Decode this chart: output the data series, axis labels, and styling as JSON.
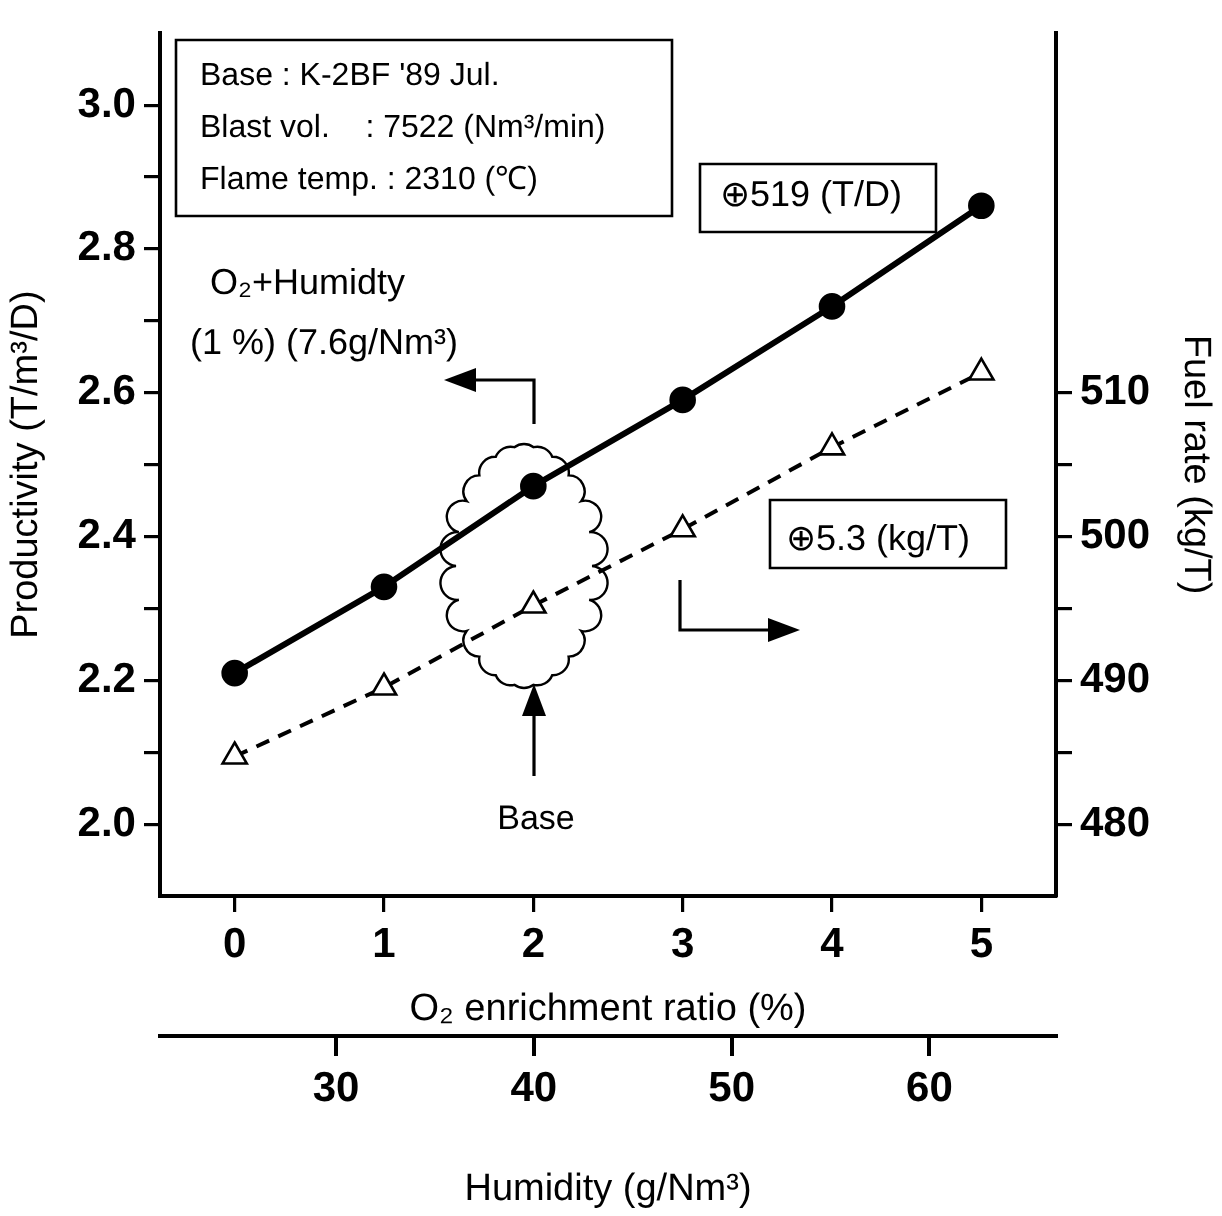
{
  "chart_data": {
    "type": "line",
    "xlabel": "O₂ enrichment ratio (%)",
    "ylabel": "Productivity (T/m³/D)",
    "y2label": "Fuel rate (kg/T)",
    "x2label": "Humidity (g/Nm³)",
    "x": [
      0,
      1,
      2,
      3,
      4,
      5
    ],
    "series": [
      {
        "color": "#000000",
        "values": [
          2.21,
          2.33,
          2.47,
          2.59,
          2.72,
          2.86
        ],
        "marker": "circle",
        "line_style": "solid"
      },
      {
        "color": "#000000",
        "values": [
          484.7,
          489.5,
          495.2,
          500.5,
          506.2,
          511.4
        ],
        "axis": "y2",
        "marker": "triangle",
        "line_style": "dashed"
      }
    ],
    "xlim": [
      -0.5,
      5.5
    ],
    "xticks": [
      0,
      1,
      2,
      3,
      4,
      5
    ],
    "ylim": [
      1.9,
      3.1
    ],
    "yticks": [
      {
        "value": 2,
        "label": "2.0"
      },
      {
        "value": 2.1,
        "label": null
      },
      {
        "value": 2.2,
        "label": "2.2"
      },
      {
        "value": 2.3,
        "label": null
      },
      {
        "value": 2.4,
        "label": "2.4"
      },
      {
        "value": 2.5,
        "label": null
      },
      {
        "value": 2.6,
        "label": "2.6"
      },
      {
        "value": 2.7,
        "label": null
      },
      {
        "value": 2.8,
        "label": "2.8"
      },
      {
        "value": 2.9,
        "label": null
      },
      {
        "value": 3,
        "label": "3.0"
      }
    ],
    "y2lim": [
      475,
      535
    ],
    "y2ticks": [
      480,
      {
        "value": 485,
        "label": null
      },
      490,
      {
        "value": 495,
        "label": null
      },
      500,
      {
        "value": 505,
        "label": null
      },
      510
    ],
    "x2lim": [
      21.1,
      66.4
    ],
    "x2ticks": [
      30,
      40,
      50,
      60
    ],
    "grid": false,
    "legend": false,
    "annotations": [
      "Base : K-2BF '89 Jul.",
      "Blast vol.    : 7522 (Nm³/min)",
      "Flame temp. : 2310 (℃)",
      "⊕519 (T/D)",
      "⊕5.3 (kg/T)",
      "O₂+Humidty",
      "(1 %) (7.6g/Nm³)",
      "Base"
    ]
  }
}
